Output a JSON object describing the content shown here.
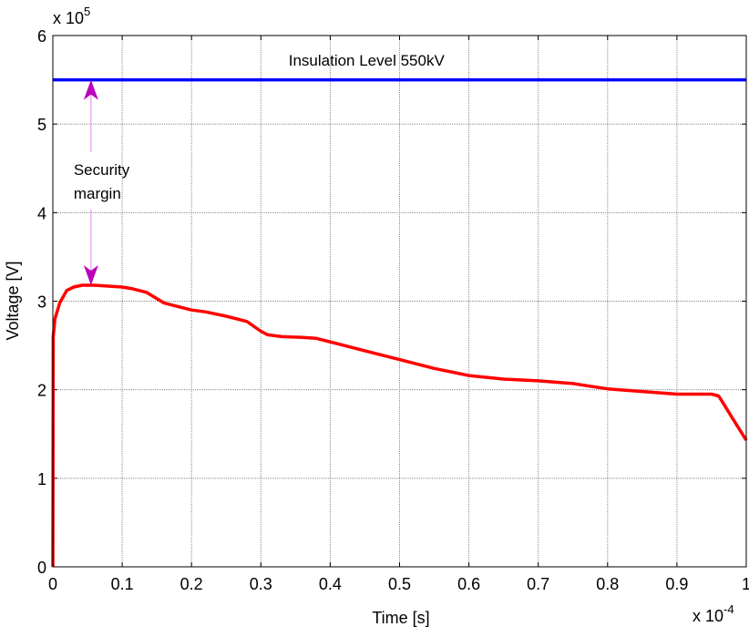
{
  "chart_data": {
    "type": "line",
    "title": "",
    "xlabel": "Time [s]",
    "ylabel": "Voltage [V]",
    "x_multiplier_label": {
      "base": "x 10",
      "exp": "-4"
    },
    "y_multiplier_label": {
      "base": "x 10",
      "exp": "5"
    },
    "xlim": [
      0,
      1
    ],
    "ylim": [
      0,
      6
    ],
    "xticks": [
      "0",
      "0.1",
      "0.2",
      "0.3",
      "0.4",
      "0.5",
      "0.6",
      "0.7",
      "0.8",
      "0.9",
      "1"
    ],
    "yticks": [
      "0",
      "1",
      "2",
      "3",
      "4",
      "5",
      "6"
    ],
    "grid": true,
    "series": [
      {
        "color": "#ff0000",
        "x": [
          0,
          0.0005,
          0.003,
          0.01,
          0.02,
          0.03,
          0.042,
          0.06,
          0.08,
          0.1,
          0.115,
          0.135,
          0.16,
          0.18,
          0.2,
          0.22,
          0.25,
          0.28,
          0.3,
          0.31,
          0.33,
          0.36,
          0.38,
          0.4,
          0.45,
          0.5,
          0.55,
          0.6,
          0.65,
          0.7,
          0.75,
          0.8,
          0.85,
          0.9,
          0.95,
          0.96,
          0.965,
          0.98,
          1.0
        ],
        "y": [
          0,
          2.6,
          2.8,
          2.98,
          3.12,
          3.16,
          3.18,
          3.18,
          3.17,
          3.16,
          3.14,
          3.1,
          2.98,
          2.94,
          2.9,
          2.88,
          2.83,
          2.77,
          2.66,
          2.62,
          2.6,
          2.59,
          2.58,
          2.54,
          2.44,
          2.34,
          2.24,
          2.16,
          2.12,
          2.1,
          2.07,
          2.01,
          1.98,
          1.95,
          1.95,
          1.93,
          1.87,
          1.68,
          1.43
        ]
      },
      {
        "color": "#0000ff",
        "x": [
          0,
          1
        ],
        "y": [
          5.5,
          5.5
        ]
      }
    ],
    "annotations": [
      {
        "text": "Insulation Level 550kV",
        "x": 0.34,
        "y": 5.72
      },
      {
        "text_lines": [
          "Security",
          "margin"
        ],
        "x": 0.03,
        "y": 4.4,
        "arrow_color": "#bb00bb",
        "arrow_x": 0.055,
        "arrow_from": 3.18,
        "arrow_to": 5.5
      }
    ]
  }
}
